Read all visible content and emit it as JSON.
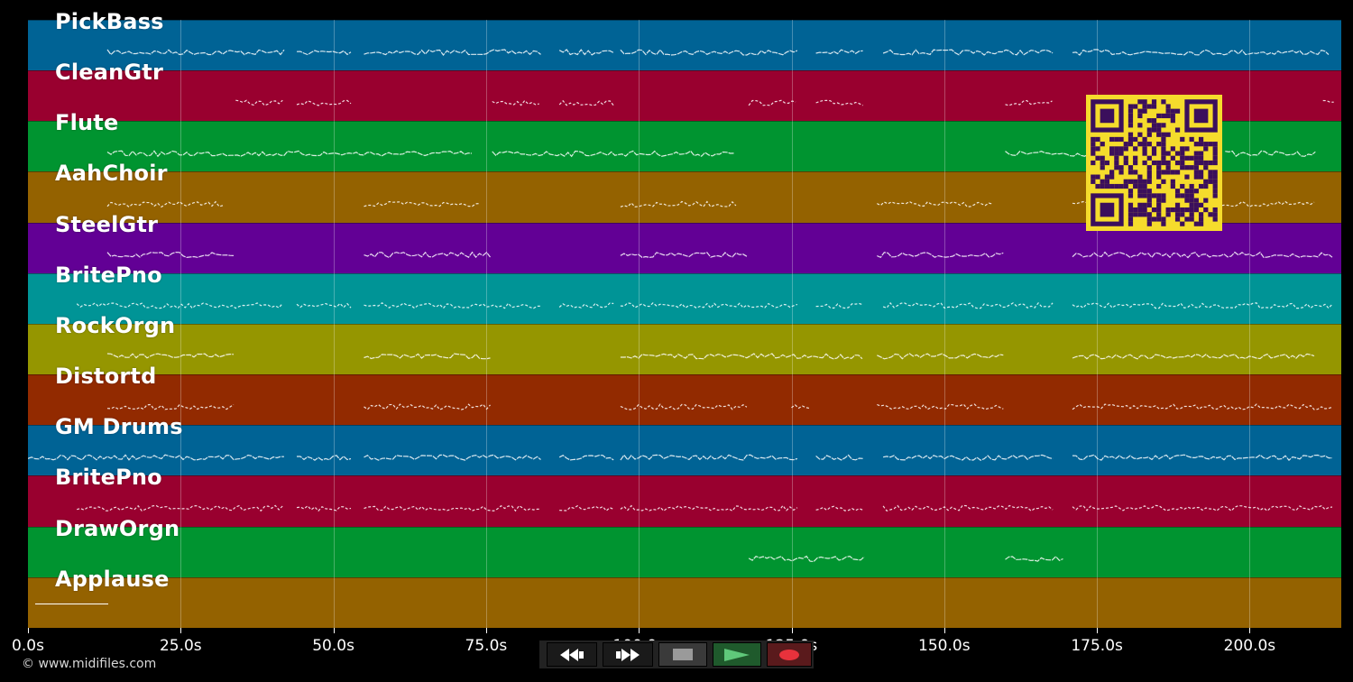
{
  "tracks": [
    {
      "label": "PickBass",
      "color": "#006395"
    },
    {
      "label": "CleanGtr",
      "color": "#99002f"
    },
    {
      "label": "Flute",
      "color": "#009430"
    },
    {
      "label": "AahChoir",
      "color": "#946200"
    },
    {
      "label": "SteelGtr",
      "color": "#620095"
    },
    {
      "label": "BritePno",
      "color": "#009496"
    },
    {
      "label": "RockOrgn",
      "color": "#959600"
    },
    {
      "label": "Distortd",
      "color": "#922a00"
    },
    {
      "label": "GM Drums",
      "color": "#006395"
    },
    {
      "label": "BritePno",
      "color": "#99002f"
    },
    {
      "label": "DrawOrgn",
      "color": "#009430"
    },
    {
      "label": "Applause",
      "color": "#946200"
    }
  ],
  "timeline": {
    "max_seconds": 215,
    "ticks": [
      "0.0s",
      "25.0s",
      "50.0s",
      "75.0s",
      "100.0s",
      "125.0s",
      "150.0s",
      "175.0s",
      "200.0s"
    ],
    "tick_values": [
      0,
      25,
      50,
      75,
      100,
      125,
      150,
      175,
      200
    ]
  },
  "transport": {
    "rewind_icon": "rewind-icon",
    "forward_icon": "fast-forward-icon",
    "stop_icon": "stop-icon",
    "play_icon": "play-icon",
    "record_icon": "record-icon",
    "play_color": "#5fc87a",
    "record_color": "#e8323c"
  },
  "qr": {
    "background": "#f5dc2c",
    "foreground": "#3b0f5c"
  },
  "copyright": "© www.midifiles.com"
}
